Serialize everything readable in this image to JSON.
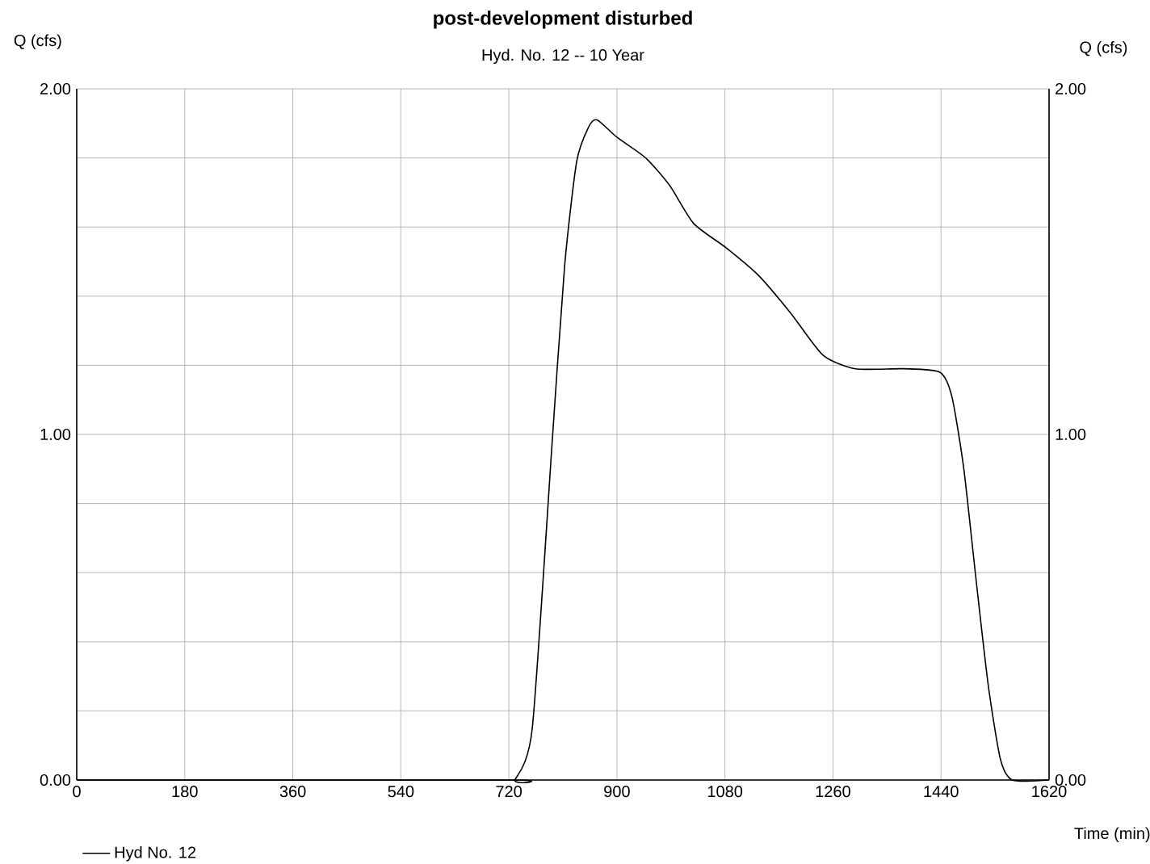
{
  "chart_data": {
    "type": "line",
    "title": "post-development disturbed",
    "subtitle": "Hyd. No. 12 -- 10 Year",
    "xlabel": "Time (min)",
    "ylabel": "Q (cfs)",
    "y2label": "Q (cfs)",
    "xlim": [
      0,
      1620
    ],
    "xticks": [
      0,
      180,
      360,
      540,
      720,
      900,
      1080,
      1260,
      1440,
      1620
    ],
    "ylim": [
      0,
      2
    ],
    "yticks": [
      {
        "value": 0,
        "label": "0.00"
      },
      {
        "value": 0.2,
        "label": null
      },
      {
        "value": 0.4,
        "label": null
      },
      {
        "value": 0.6,
        "label": null
      },
      {
        "value": 0.8,
        "label": null
      },
      {
        "value": 1,
        "label": "1.00"
      },
      {
        "value": 1.2,
        "label": null
      },
      {
        "value": 1.4,
        "label": null
      },
      {
        "value": 1.6,
        "label": null
      },
      {
        "value": 1.8,
        "label": null
      },
      {
        "value": 2,
        "label": "2.00"
      }
    ],
    "y2lim": [
      0,
      2
    ],
    "y2ticks": [
      {
        "value": 0,
        "label": "0.00"
      },
      {
        "value": 1,
        "label": "1.00"
      },
      {
        "value": 2,
        "label": "2.00"
      }
    ],
    "grid": true,
    "legend": "bottom left",
    "marker": "none",
    "line_style": "solid",
    "series": [
      {
        "name": "Hyd No. 12",
        "color": "#000000",
        "x": [
          0,
          720,
          730,
          759,
          793,
          813,
          833,
          853,
          867,
          900,
          948,
          988,
          1028,
          1082,
          1136,
          1190,
          1243,
          1297,
          1378,
          1438,
          1458,
          1478,
          1499,
          1519,
          1539,
          1559,
          1620
        ],
        "values": [
          0,
          0,
          0,
          0.15,
          1.0,
          1.49,
          1.79,
          1.89,
          1.91,
          1.86,
          1.8,
          1.72,
          1.61,
          1.54,
          1.46,
          1.35,
          1.23,
          1.19,
          1.19,
          1.18,
          1.11,
          0.9,
          0.57,
          0.27,
          0.06,
          0,
          0
        ]
      }
    ]
  }
}
